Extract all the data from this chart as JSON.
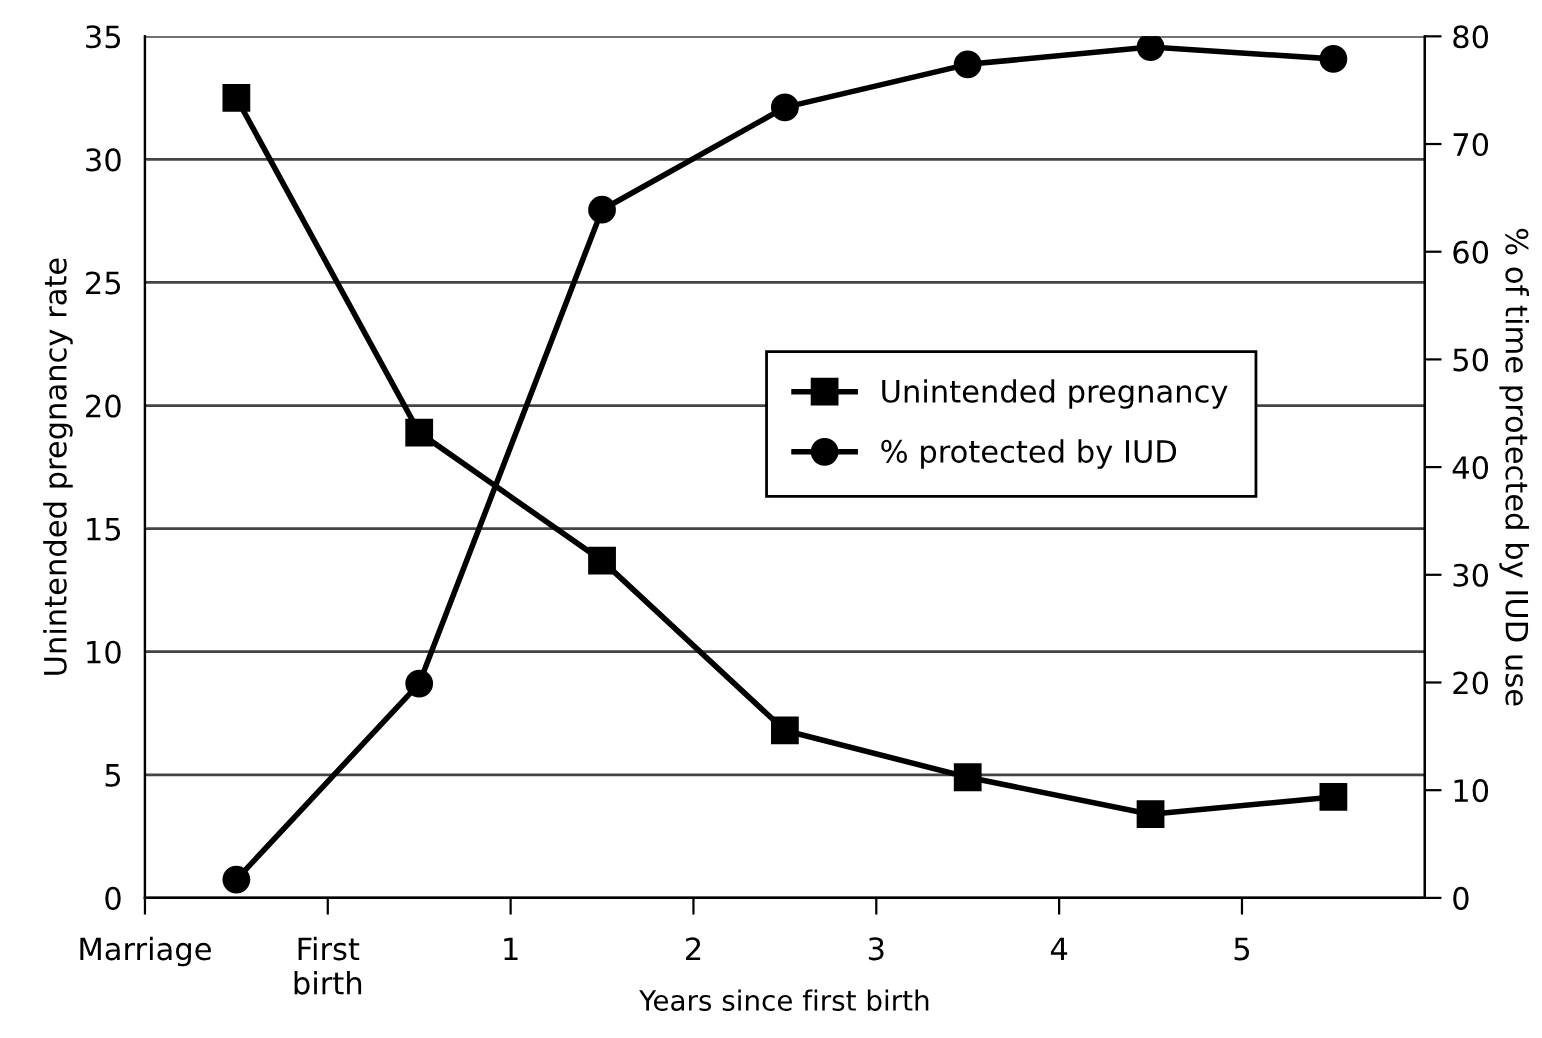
{
  "chart_data": {
    "type": "line",
    "xlabel": "Years since first birth",
    "ylabel": "Unintended pregnancy rate",
    "y2label": "% of time protected by IUD use",
    "x": [
      -0.5,
      0.5,
      1.5,
      2.5,
      3.5,
      4.5,
      5.5
    ],
    "series": [
      {
        "name": "Unintended pregnancy",
        "color": "#000000",
        "marker": "square",
        "values": [
          32.5,
          18.9,
          13.7,
          6.8,
          4.9,
          3.4,
          4.1
        ]
      },
      {
        "name": "% protected by IUD",
        "color": "#000000",
        "marker": "circle",
        "axis": "y2",
        "values": [
          1.7,
          19.9,
          63.9,
          73.4,
          77.4,
          79.0,
          77.9
        ]
      }
    ],
    "xlim": [
      -1,
      6
    ],
    "xticks": [
      {
        "value": -1,
        "label": "Marriage"
      },
      {
        "value": 0,
        "label": "First\nbirth"
      },
      1,
      2,
      3,
      4,
      5
    ],
    "ylim": [
      0,
      35
    ],
    "yticks": [
      0,
      5,
      10,
      15,
      20,
      25,
      30,
      35
    ],
    "y2lim": [
      0,
      80
    ],
    "y2ticks": [
      0,
      10,
      20,
      30,
      40,
      50,
      60,
      70,
      80
    ],
    "grid": "y",
    "legend": "right",
    "line_style": "solid"
  }
}
